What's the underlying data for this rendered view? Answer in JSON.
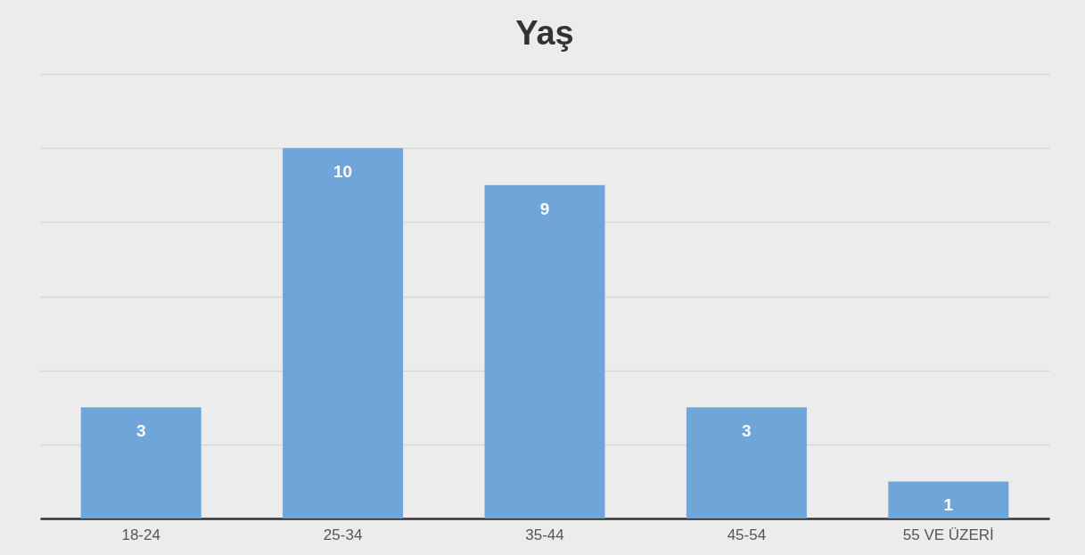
{
  "chart_data": {
    "type": "bar",
    "title": "Yaş",
    "categories": [
      "18-24",
      "25-34",
      "35-44",
      "45-54",
      "55 VE ÜZERİ"
    ],
    "values": [
      3,
      10,
      9,
      3,
      1
    ],
    "color": "#6fa5d9",
    "ylim": [
      0,
      12
    ],
    "yticks": [
      {
        "value": 0,
        "label": null
      },
      {
        "value": 2,
        "label": null
      },
      {
        "value": 4,
        "label": null
      },
      {
        "value": 6,
        "label": null
      },
      {
        "value": 8,
        "label": null
      },
      {
        "value": 10,
        "label": null
      },
      {
        "value": 12,
        "label": null
      }
    ],
    "tick_labels": "x",
    "grid": "y",
    "data_labels": true
  }
}
